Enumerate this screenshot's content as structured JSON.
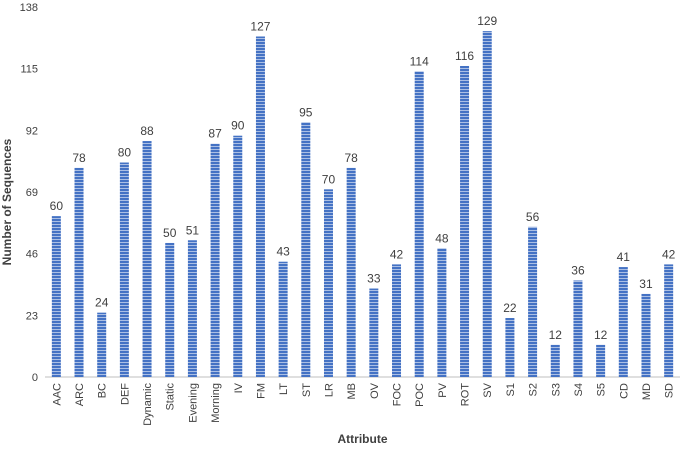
{
  "chart_data": {
    "type": "bar",
    "title": "",
    "xlabel": "Attribute",
    "ylabel": "Number of Sequences",
    "ylim": [
      0,
      138
    ],
    "yticks": [
      0,
      23,
      46,
      69,
      92,
      115,
      138
    ],
    "grid": false,
    "legend": "none",
    "bar_color": "#4472c4",
    "bar_stripe_color": "#ffffff",
    "categories": [
      "AAC",
      "ARC",
      "BC",
      "DEF",
      "Dynamic",
      "Static",
      "Evening",
      "Morning",
      "IV",
      "FM",
      "LT",
      "ST",
      "LR",
      "MB",
      "OV",
      "FOC",
      "POC",
      "PV",
      "ROT",
      "SV",
      "S1",
      "S2",
      "S3",
      "S4",
      "S5",
      "CD",
      "MD",
      "SD"
    ],
    "values": [
      60,
      78,
      24,
      80,
      88,
      50,
      51,
      87,
      90,
      127,
      43,
      95,
      70,
      78,
      33,
      42,
      114,
      48,
      116,
      129,
      22,
      56,
      12,
      36,
      12,
      41,
      31,
      42
    ]
  }
}
